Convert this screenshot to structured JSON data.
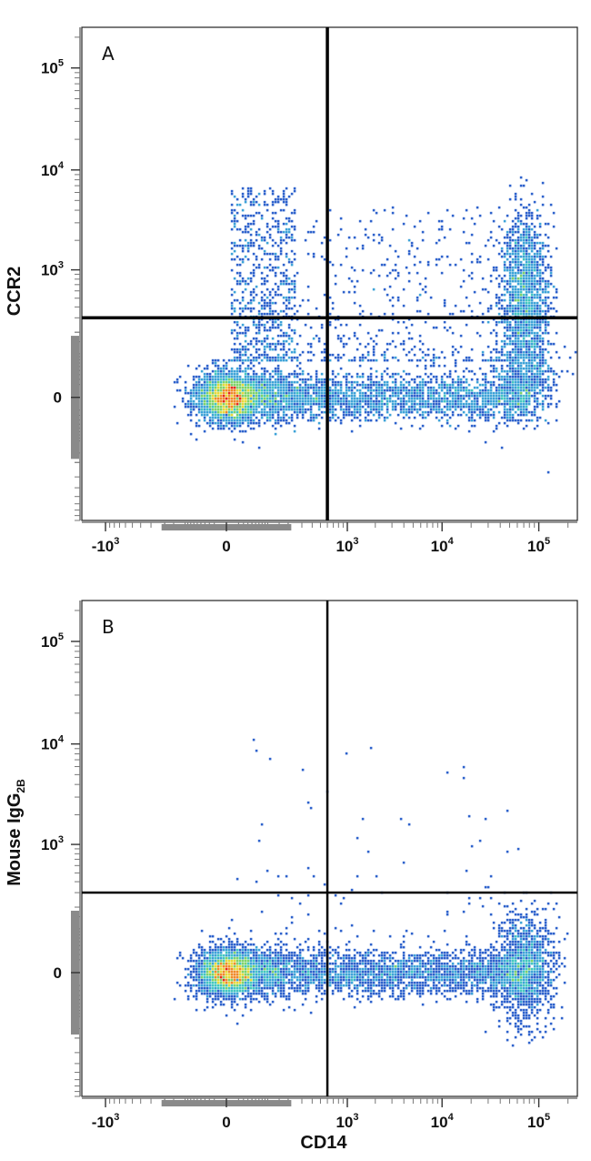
{
  "chart_data": [
    {
      "type": "scatter",
      "plot_style": "flow cytometry density dot plot (pseudocolor)",
      "panel_label": "A",
      "xlabel": "",
      "ylabel": "CCR2",
      "x_scale": "biexponential",
      "y_scale": "biexponential",
      "xlim": [
        -1800,
        250000
      ],
      "ylim": [
        -900,
        250000
      ],
      "x_ticks": [
        {
          "value": -1000,
          "base": "-10",
          "exp": "3"
        },
        {
          "value": 0,
          "base": "0",
          "exp": ""
        },
        {
          "value": 1000,
          "base": "10",
          "exp": "3"
        },
        {
          "value": 10000,
          "base": "10",
          "exp": "4"
        },
        {
          "value": 100000,
          "base": "10",
          "exp": "5"
        }
      ],
      "y_ticks": [
        {
          "value": 0,
          "base": "0",
          "exp": ""
        },
        {
          "value": 1000,
          "base": "10",
          "exp": "3"
        },
        {
          "value": 10000,
          "base": "10",
          "exp": "4"
        },
        {
          "value": 100000,
          "base": "10",
          "exp": "5"
        }
      ],
      "quadrant_gates": {
        "x": 600,
        "y": 300
      },
      "populations": [
        {
          "name": "",
          "x_center": 30,
          "y_center": 0,
          "density": "high"
        },
        {
          "name": "",
          "x_center": 4000,
          "y_center": 0,
          "density": "low"
        },
        {
          "name": "",
          "x_center": 75000,
          "y_center": 700,
          "density": "medium"
        },
        {
          "name": "",
          "x_center": 300,
          "y_center": 900,
          "density": "low"
        }
      ]
    },
    {
      "type": "scatter",
      "plot_style": "flow cytometry density dot plot (pseudocolor)",
      "panel_label": "B",
      "xlabel": "CD14",
      "ylabel": "Mouse IgG",
      "ylabel_subscript": "2B",
      "x_scale": "biexponential",
      "y_scale": "biexponential",
      "xlim": [
        -1800,
        250000
      ],
      "ylim": [
        -900,
        250000
      ],
      "x_ticks": [
        {
          "value": -1000,
          "base": "-10",
          "exp": "3"
        },
        {
          "value": 0,
          "base": "0",
          "exp": ""
        },
        {
          "value": 1000,
          "base": "10",
          "exp": "3"
        },
        {
          "value": 10000,
          "base": "10",
          "exp": "4"
        },
        {
          "value": 100000,
          "base": "10",
          "exp": "5"
        }
      ],
      "y_ticks": [
        {
          "value": 0,
          "base": "0",
          "exp": ""
        },
        {
          "value": 1000,
          "base": "10",
          "exp": "3"
        },
        {
          "value": 10000,
          "base": "10",
          "exp": "4"
        },
        {
          "value": 100000,
          "base": "10",
          "exp": "5"
        }
      ],
      "quadrant_gates": {
        "x": 600,
        "y": 300
      },
      "populations": [
        {
          "name": "",
          "x_center": 30,
          "y_center": 0,
          "density": "high"
        },
        {
          "name": "",
          "x_center": 4000,
          "y_center": 0,
          "density": "medium"
        },
        {
          "name": "",
          "x_center": 80000,
          "y_center": 0,
          "density": "medium"
        }
      ]
    }
  ],
  "colors": {
    "density_ramp": [
      "#1f33a8",
      "#2e62cc",
      "#3ea3d8",
      "#43c7c0",
      "#7ed36a",
      "#e6d93a",
      "#f08a2a",
      "#e52a1e"
    ],
    "gate_line": "#000000",
    "axis": "#333333"
  }
}
